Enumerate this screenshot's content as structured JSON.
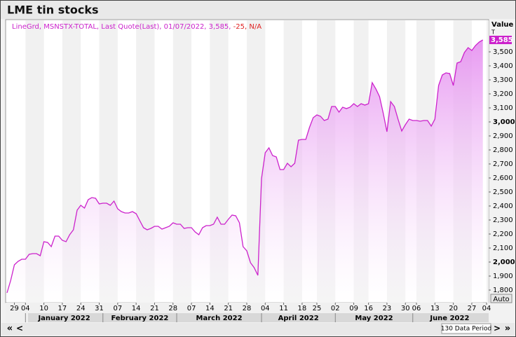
{
  "chart_data": {
    "type": "area",
    "title": "LME tin stocks",
    "legend": [
      "LineGrd, MSNSTX-TOTAL, Last Quote(Last), 01/07/2022, 3,585, ",
      "-25, N/A"
    ],
    "axis_title": "Value",
    "axis_unit": "T",
    "last_label": "3,585",
    "auto_label": "Auto",
    "period_label": "130 Data Period",
    "nav": [
      "«",
      "<",
      ">",
      "»"
    ],
    "color": "#cc22cc",
    "categories": [
      null,
      null,
      "29",
      null,
      null,
      "04",
      null,
      null,
      null,
      null,
      "10",
      null,
      null,
      null,
      null,
      "17",
      null,
      null,
      null,
      null,
      "24",
      null,
      null,
      null,
      null,
      "31",
      null,
      null,
      null,
      null,
      "07",
      null,
      null,
      null,
      null,
      "14",
      null,
      null,
      null,
      null,
      "21",
      null,
      null,
      null,
      null,
      "28",
      null,
      null,
      null,
      null,
      "07",
      null,
      null,
      null,
      null,
      "14",
      null,
      null,
      null,
      null,
      "21",
      null,
      null,
      null,
      null,
      "28",
      null,
      null,
      null,
      null,
      "04",
      null,
      null,
      null,
      null,
      "11",
      null,
      null,
      null,
      null,
      "18",
      null,
      null,
      null,
      "25",
      null,
      null,
      null,
      null,
      "02",
      null,
      null,
      null,
      null,
      "09",
      null,
      null,
      null,
      "16",
      null,
      null,
      null,
      null,
      "23",
      null,
      null,
      null,
      null,
      "30",
      null,
      null,
      "06",
      null,
      null,
      null,
      null,
      "13",
      null,
      null,
      null,
      null,
      "20",
      null,
      null,
      null,
      null,
      "27",
      null,
      null,
      null,
      "04"
    ],
    "values": [
      1780,
      1870,
      1980,
      2005,
      2020,
      2020,
      2055,
      2060,
      2060,
      2045,
      2145,
      2140,
      2110,
      2185,
      2185,
      2155,
      2145,
      2195,
      2230,
      2370,
      2405,
      2385,
      2445,
      2460,
      2455,
      2415,
      2420,
      2420,
      2405,
      2435,
      2380,
      2360,
      2350,
      2350,
      2360,
      2345,
      2295,
      2245,
      2230,
      2240,
      2255,
      2255,
      2235,
      2245,
      2255,
      2280,
      2270,
      2270,
      2240,
      2245,
      2245,
      2215,
      2195,
      2245,
      2260,
      2260,
      2270,
      2320,
      2270,
      2270,
      2305,
      2335,
      2330,
      2280,
      2110,
      2080,
      1995,
      1960,
      1905,
      2595,
      2780,
      2815,
      2760,
      2750,
      2660,
      2660,
      2705,
      2680,
      2705,
      2870,
      2875,
      2875,
      2960,
      3030,
      3050,
      3040,
      3010,
      3020,
      3110,
      3110,
      3070,
      3105,
      3095,
      3105,
      3130,
      3110,
      3130,
      3120,
      3130,
      3280,
      3235,
      3180,
      3060,
      2930,
      3145,
      3110,
      3020,
      2935,
      2980,
      3020,
      3010,
      3010,
      3005,
      3010,
      3010,
      2970,
      3020,
      3260,
      3335,
      3350,
      3345,
      3260,
      3420,
      3430,
      3495,
      3530,
      3510,
      3545,
      3570,
      3585,
      null
    ],
    "month_labels": [
      {
        "value": 5,
        "label": "January 2022"
      },
      {
        "value": 26,
        "label": "February 2022"
      },
      {
        "value": 46,
        "label": "March 2022"
      },
      {
        "value": 69,
        "label": "April 2022"
      },
      {
        "value": 89,
        "label": "May 2022"
      },
      {
        "value": 110,
        "label": "June 2022"
      }
    ],
    "ylim": [
      1710,
      3730
    ],
    "yticks": [
      {
        "value": 1800,
        "label": "1,800"
      },
      {
        "value": 1900,
        "label": "1,900"
      },
      {
        "value": 2000,
        "label": "2,000"
      },
      {
        "value": 2100,
        "label": "2,100"
      },
      {
        "value": 2200,
        "label": "2,200"
      },
      {
        "value": 2300,
        "label": "2,300"
      },
      {
        "value": 2400,
        "label": "2,400"
      },
      {
        "value": 2500,
        "label": "2,500"
      },
      {
        "value": 2600,
        "label": "2,600"
      },
      {
        "value": 2700,
        "label": "2,700"
      },
      {
        "value": 2800,
        "label": "2,800"
      },
      {
        "value": 2900,
        "label": "2,900"
      },
      {
        "value": 3000,
        "label": "3,000"
      },
      {
        "value": 3100,
        "label": "3,100"
      },
      {
        "value": 3200,
        "label": "3,200"
      },
      {
        "value": 3300,
        "label": "3,300"
      },
      {
        "value": 3400,
        "label": "3,400"
      },
      {
        "value": 3500,
        "label": "3,500"
      }
    ],
    "y_axis_side": "right"
  }
}
